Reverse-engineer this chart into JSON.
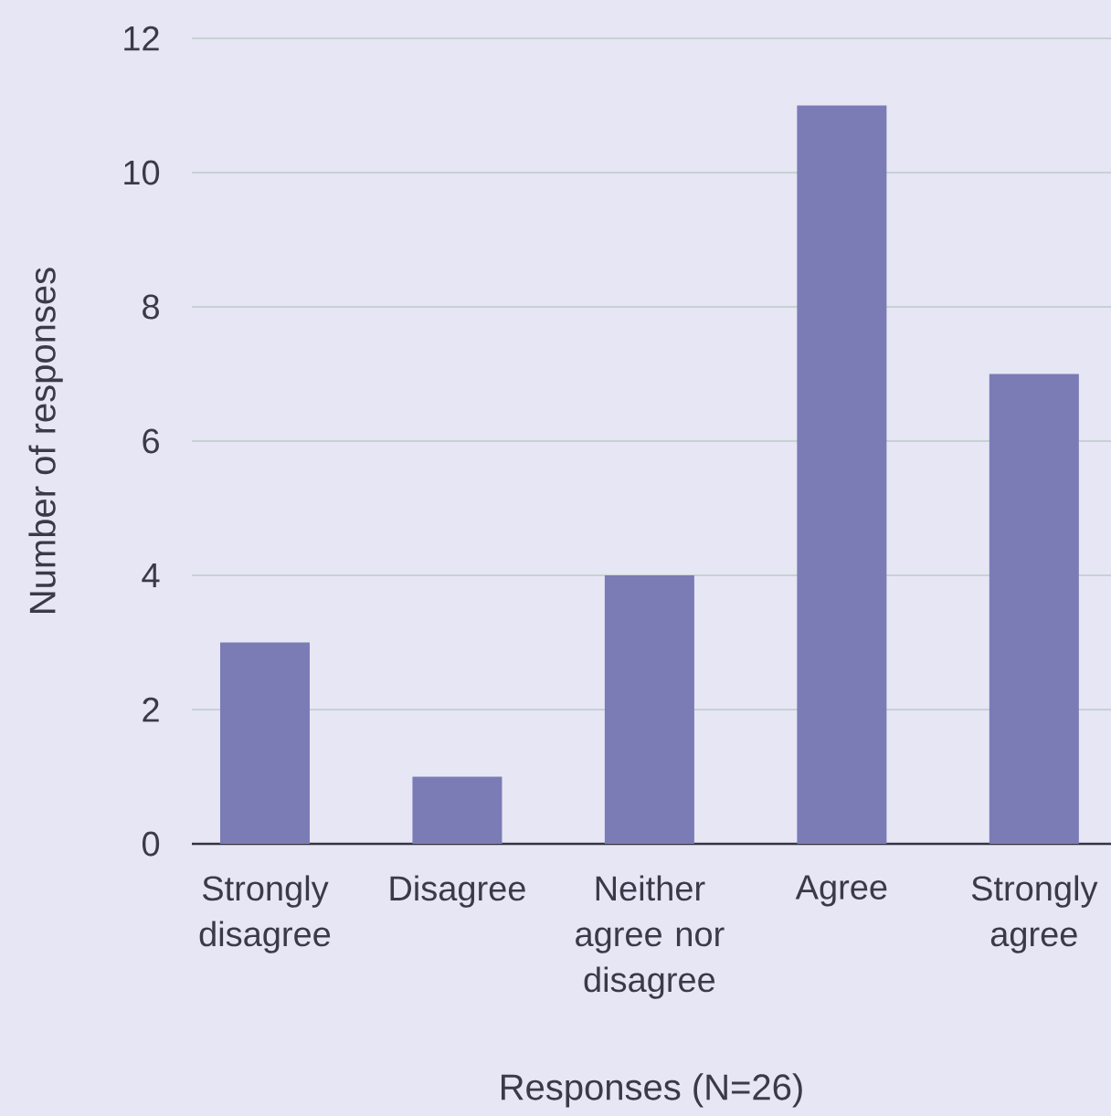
{
  "chart_data": {
    "type": "bar",
    "xlabel": "Responses (N=26)",
    "ylabel": "Number of responses",
    "categories": [
      "Strongly disagree",
      "Disagree",
      "Neither agree nor disagree",
      "Agree",
      "Strongly agree"
    ],
    "values": [
      3,
      1,
      4,
      11,
      7
    ],
    "color": "#7b7bb6",
    "ylim": [
      0,
      12
    ],
    "yticks": [
      0,
      2,
      4,
      6,
      8,
      10,
      12
    ],
    "grid": "y"
  }
}
